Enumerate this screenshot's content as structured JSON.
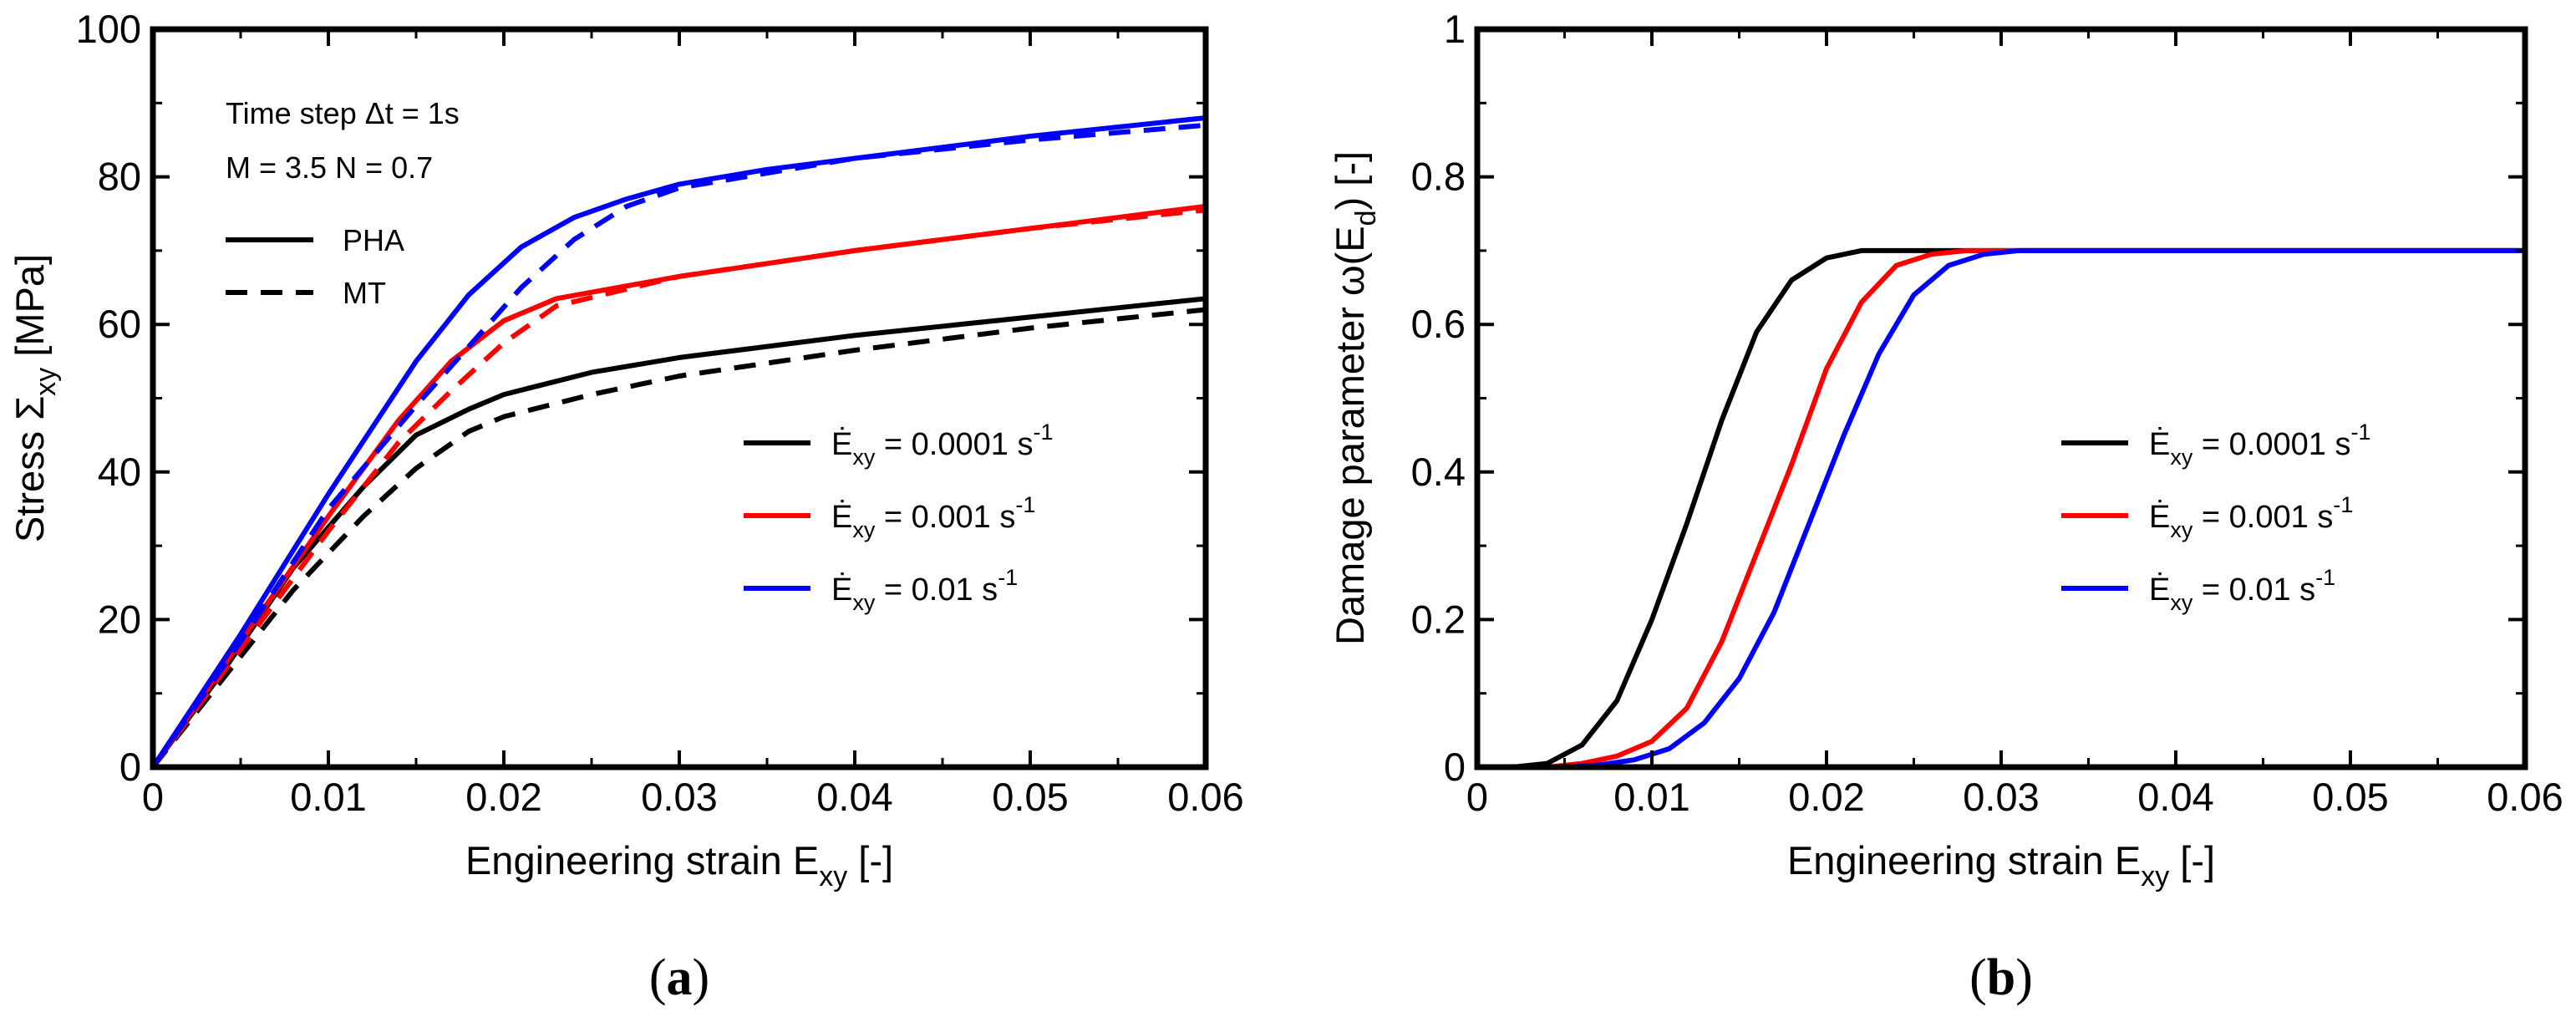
{
  "chart_data": [
    {
      "panel": "(a)",
      "type": "line",
      "xlabel": "Engineering strain E",
      "xlabel_sub": "xy",
      "xlabel_tail": " [-]",
      "ylabel": "Stress Σ",
      "ylabel_sub": "xy",
      "ylabel_tail": " [MPa]",
      "xlim": [
        0,
        0.06
      ],
      "ylim": [
        0,
        100
      ],
      "xticks": [
        0,
        0.01,
        0.02,
        0.03,
        0.04,
        0.05,
        0.06
      ],
      "xtick_labels": [
        "0",
        "0.01",
        "0.02",
        "0.03",
        "0.04",
        "0.05",
        "0.06"
      ],
      "yticks": [
        0,
        20,
        40,
        60,
        80,
        100
      ],
      "ytick_labels": [
        "0",
        "20",
        "40",
        "60",
        "80",
        "100"
      ],
      "annotations": [
        "Time step Δt = 1s",
        "M = 3.5 N = 0.7"
      ],
      "style_legend": [
        {
          "label": "PHA",
          "dash": "solid"
        },
        {
          "label": "MT",
          "dash": "dashed"
        }
      ],
      "rate_legend": [
        {
          "prefix": "Ė",
          "sub": "xy",
          "text": " = 0.0001 s",
          "sup": "-1",
          "color": "#000000"
        },
        {
          "prefix": "Ė",
          "sub": "xy",
          "text": " = 0.001 s",
          "sup": "-1",
          "color": "#ff0000"
        },
        {
          "prefix": "Ė",
          "sub": "xy",
          "text": " = 0.01 s",
          "sup": "-1",
          "color": "#0000ff"
        }
      ],
      "series": [
        {
          "name": "PHA 0.0001",
          "color": "#000000",
          "dash": "solid",
          "x": [
            0,
            0.004,
            0.008,
            0.012,
            0.015,
            0.018,
            0.02,
            0.025,
            0.03,
            0.04,
            0.05,
            0.06
          ],
          "y": [
            0,
            13,
            27,
            38,
            45,
            48.5,
            50.5,
            53.5,
            55.5,
            58.5,
            61,
            63.5
          ]
        },
        {
          "name": "MT 0.0001",
          "color": "#000000",
          "dash": "dashed",
          "x": [
            0,
            0.004,
            0.008,
            0.012,
            0.015,
            0.018,
            0.02,
            0.025,
            0.03,
            0.04,
            0.05,
            0.06
          ],
          "y": [
            0,
            12,
            24,
            34,
            40.5,
            45.5,
            47.5,
            50.5,
            53,
            56.5,
            59.5,
            62
          ]
        },
        {
          "name": "PHA 0.001",
          "color": "#ff0000",
          "dash": "solid",
          "x": [
            0,
            0.005,
            0.01,
            0.014,
            0.017,
            0.02,
            0.023,
            0.03,
            0.04,
            0.05,
            0.06
          ],
          "y": [
            0,
            17,
            34,
            47,
            55,
            60.5,
            63.5,
            66.5,
            70,
            73,
            76
          ]
        },
        {
          "name": "MT 0.001",
          "color": "#ff0000",
          "dash": "dashed",
          "x": [
            0,
            0.005,
            0.01,
            0.014,
            0.017,
            0.02,
            0.023,
            0.03,
            0.04,
            0.05,
            0.06
          ],
          "y": [
            0,
            16,
            32,
            44,
            51,
            57.5,
            62.5,
            66.5,
            70,
            73,
            75.5
          ]
        },
        {
          "name": "PHA 0.01",
          "color": "#0000ff",
          "dash": "solid",
          "x": [
            0,
            0.005,
            0.01,
            0.015,
            0.018,
            0.021,
            0.024,
            0.027,
            0.03,
            0.035,
            0.04,
            0.05,
            0.06
          ],
          "y": [
            0,
            18,
            37,
            55,
            64,
            70.5,
            74.5,
            77,
            79,
            81,
            82.5,
            85.5,
            88
          ]
        },
        {
          "name": "MT 0.01",
          "color": "#0000ff",
          "dash": "dashed",
          "x": [
            0,
            0.005,
            0.01,
            0.015,
            0.018,
            0.021,
            0.024,
            0.027,
            0.03,
            0.035,
            0.04,
            0.05,
            0.06
          ],
          "y": [
            0,
            17,
            35,
            49,
            57,
            65,
            71.5,
            76,
            78.5,
            80.5,
            82.5,
            85,
            87
          ]
        }
      ]
    },
    {
      "panel": "(b)",
      "type": "line",
      "xlabel": "Engineering strain E",
      "xlabel_sub": "xy",
      "xlabel_tail": " [-]",
      "ylabel": "Damage parameter  ω(E",
      "ylabel_sub": "d",
      "ylabel_tail": ") [-]",
      "xlim": [
        0,
        0.06
      ],
      "ylim": [
        0,
        1
      ],
      "xticks": [
        0,
        0.01,
        0.02,
        0.03,
        0.04,
        0.05,
        0.06
      ],
      "xtick_labels": [
        "0",
        "0.01",
        "0.02",
        "0.03",
        "0.04",
        "0.05",
        "0.06"
      ],
      "yticks": [
        0,
        0.2,
        0.4,
        0.6,
        0.8,
        1
      ],
      "ytick_labels": [
        "0",
        "0.2",
        "0.4",
        "0.6",
        "0.8",
        "1"
      ],
      "rate_legend": [
        {
          "prefix": "Ė",
          "sub": "xy",
          "text": " = 0.0001 s",
          "sup": "-1",
          "color": "#000000"
        },
        {
          "prefix": "Ė",
          "sub": "xy",
          "text": " = 0.001 s",
          "sup": "-1",
          "color": "#ff0000"
        },
        {
          "prefix": "Ė",
          "sub": "xy",
          "text": " = 0.01 s",
          "sup": "-1",
          "color": "#0000ff"
        }
      ],
      "series": [
        {
          "name": "0.0001",
          "color": "#000000",
          "dash": "solid",
          "x": [
            0,
            0.002,
            0.004,
            0.006,
            0.008,
            0.01,
            0.012,
            0.014,
            0.016,
            0.018,
            0.02,
            0.022,
            0.024,
            0.06
          ],
          "y": [
            0,
            0,
            0.005,
            0.03,
            0.09,
            0.2,
            0.33,
            0.47,
            0.59,
            0.66,
            0.69,
            0.7,
            0.7,
            0.7
          ]
        },
        {
          "name": "0.001",
          "color": "#ff0000",
          "dash": "solid",
          "x": [
            0,
            0.004,
            0.006,
            0.008,
            0.01,
            0.012,
            0.014,
            0.016,
            0.018,
            0.02,
            0.022,
            0.024,
            0.026,
            0.028,
            0.06
          ],
          "y": [
            0,
            0,
            0.005,
            0.015,
            0.035,
            0.08,
            0.17,
            0.29,
            0.41,
            0.54,
            0.63,
            0.68,
            0.695,
            0.7,
            0.7
          ]
        },
        {
          "name": "0.01",
          "color": "#0000ff",
          "dash": "solid",
          "x": [
            0,
            0.005,
            0.007,
            0.009,
            0.011,
            0.013,
            0.015,
            0.017,
            0.019,
            0.021,
            0.023,
            0.025,
            0.027,
            0.029,
            0.031,
            0.06
          ],
          "y": [
            0,
            0,
            0.003,
            0.01,
            0.025,
            0.06,
            0.12,
            0.21,
            0.33,
            0.45,
            0.56,
            0.64,
            0.68,
            0.695,
            0.7,
            0.7
          ]
        }
      ]
    }
  ]
}
